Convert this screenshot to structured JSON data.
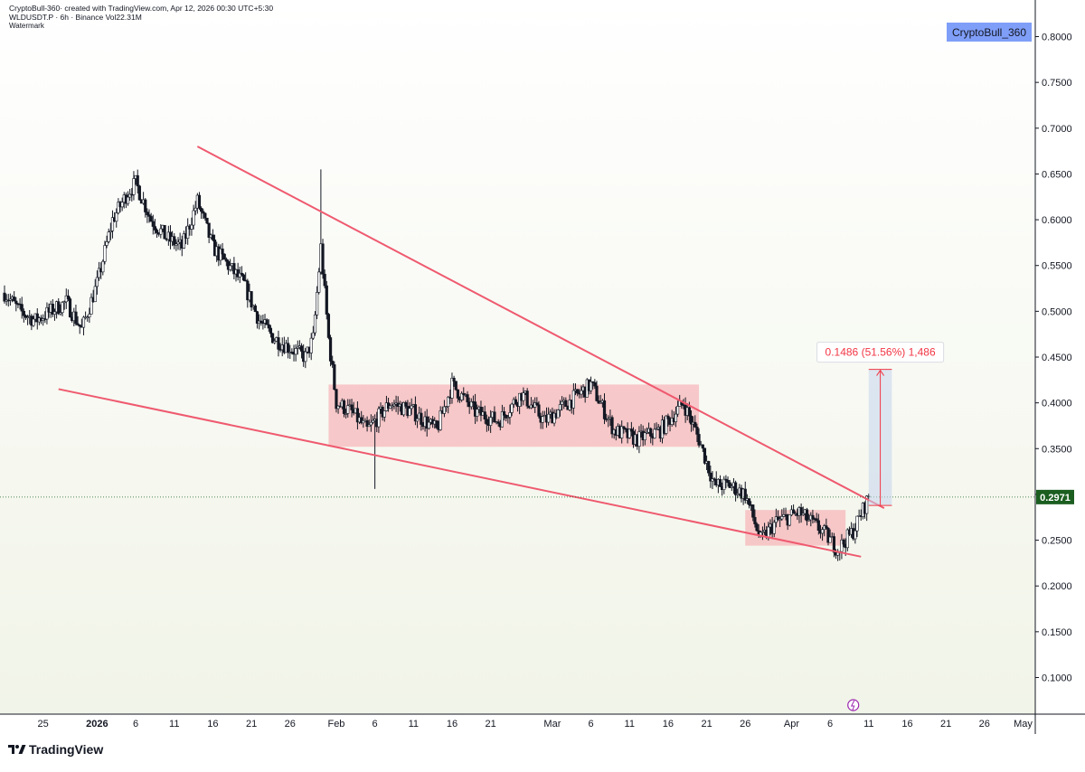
{
  "header": {
    "line1": "CryptoBull-360· created with TradingView.com, Apr 12, 2026 00:30 UTC+5:30",
    "line2": "WLDUSDT.P · 6h · Binance  Vol22.31M",
    "line3": "Watermark"
  },
  "author_badge": "CryptoBull_360",
  "brand": "TradingView",
  "colors": {
    "up": "#ffffff",
    "down": "#131722",
    "trendline": "#ef5a6f",
    "zone_fill": "#f7a1a8",
    "measure_fill": "#c5d5ec",
    "measure_line": "#f23645",
    "price_label": "#1b5e20",
    "axis_text": "#131722"
  },
  "chart_data": {
    "type": "candlestick",
    "symbol": "WLDUSDT.P",
    "interval": "6h",
    "exchange": "Binance",
    "date_range": [
      "2025-12-20",
      "2026-05-02"
    ],
    "y_axis": {
      "range": [
        0.06,
        0.84
      ],
      "ticks": [
        "0.8000",
        "0.7500",
        "0.7000",
        "0.6500",
        "0.6000",
        "0.5500",
        "0.5000",
        "0.4500",
        "0.4000",
        "0.3500",
        "0.3000",
        "0.2500",
        "0.2000",
        "0.1500",
        "0.1000"
      ]
    },
    "x_axis_ticks": [
      {
        "date": "2025-12-25",
        "label": "25"
      },
      {
        "date": "2026-01-01",
        "label": "2026"
      },
      {
        "date": "2026-01-06",
        "label": "6"
      },
      {
        "date": "2026-01-11",
        "label": "11"
      },
      {
        "date": "2026-01-16",
        "label": "16"
      },
      {
        "date": "2026-01-21",
        "label": "21"
      },
      {
        "date": "2026-01-26",
        "label": "26"
      },
      {
        "date": "2026-02-01",
        "label": "Feb"
      },
      {
        "date": "2026-02-06",
        "label": "6"
      },
      {
        "date": "2026-02-11",
        "label": "11"
      },
      {
        "date": "2026-02-16",
        "label": "16"
      },
      {
        "date": "2026-02-21",
        "label": "21"
      },
      {
        "date": "2026-03-01",
        "label": "Mar"
      },
      {
        "date": "2026-03-06",
        "label": "6"
      },
      {
        "date": "2026-03-11",
        "label": "11"
      },
      {
        "date": "2026-03-16",
        "label": "16"
      },
      {
        "date": "2026-03-21",
        "label": "21"
      },
      {
        "date": "2026-03-26",
        "label": "26"
      },
      {
        "date": "2026-04-01",
        "label": "Apr"
      },
      {
        "date": "2026-04-06",
        "label": "6"
      },
      {
        "date": "2026-04-11",
        "label": "11"
      },
      {
        "date": "2026-04-16",
        "label": "16"
      },
      {
        "date": "2026-04-21",
        "label": "21"
      },
      {
        "date": "2026-04-26",
        "label": "26"
      },
      {
        "date": "2026-05-01",
        "label": "May"
      }
    ],
    "current_price": "0.2971",
    "path_points": [
      [
        "2025-12-20",
        0.52
      ],
      [
        "2025-12-22",
        0.5
      ],
      [
        "2025-12-24",
        0.49
      ],
      [
        "2025-12-26",
        0.5
      ],
      [
        "2025-12-28",
        0.51
      ],
      [
        "2025-12-30",
        0.48
      ],
      [
        "2026-01-01",
        0.53
      ],
      [
        "2026-01-03",
        0.6
      ],
      [
        "2026-01-05",
        0.63
      ],
      [
        "2026-01-06",
        0.64
      ],
      [
        "2026-01-08",
        0.6
      ],
      [
        "2026-01-10",
        0.58
      ],
      [
        "2026-01-12",
        0.57
      ],
      [
        "2026-01-14",
        0.62
      ],
      [
        "2026-01-16",
        0.57
      ],
      [
        "2026-01-18",
        0.55
      ],
      [
        "2026-01-20",
        0.53
      ],
      [
        "2026-01-22",
        0.49
      ],
      [
        "2026-01-24",
        0.47
      ],
      [
        "2026-01-26",
        0.46
      ],
      [
        "2026-01-28",
        0.45
      ],
      [
        "2026-01-29",
        0.47
      ],
      [
        "2026-01-30",
        0.57
      ],
      [
        "2026-01-31",
        0.47
      ],
      [
        "2026-02-01",
        0.4
      ],
      [
        "2026-02-03",
        0.39
      ],
      [
        "2026-02-05",
        0.37
      ],
      [
        "2026-02-06",
        0.38
      ],
      [
        "2026-02-08",
        0.4
      ],
      [
        "2026-02-11",
        0.39
      ],
      [
        "2026-02-14",
        0.37
      ],
      [
        "2026-02-16",
        0.42
      ],
      [
        "2026-02-19",
        0.39
      ],
      [
        "2026-02-22",
        0.38
      ],
      [
        "2026-02-25",
        0.41
      ],
      [
        "2026-02-28",
        0.38
      ],
      [
        "2026-03-03",
        0.4
      ],
      [
        "2026-03-06",
        0.42
      ],
      [
        "2026-03-09",
        0.37
      ],
      [
        "2026-03-12",
        0.36
      ],
      [
        "2026-03-15",
        0.37
      ],
      [
        "2026-03-18",
        0.4
      ],
      [
        "2026-03-20",
        0.36
      ],
      [
        "2026-03-22",
        0.31
      ],
      [
        "2026-03-24",
        0.31
      ],
      [
        "2026-03-26",
        0.3
      ],
      [
        "2026-03-28",
        0.25
      ],
      [
        "2026-03-30",
        0.27
      ],
      [
        "2026-04-02",
        0.28
      ],
      [
        "2026-04-05",
        0.26
      ],
      [
        "2026-04-07",
        0.24
      ],
      [
        "2026-04-09",
        0.26
      ],
      [
        "2026-04-11",
        0.2971
      ]
    ],
    "annotations": {
      "falling_wedge_upper": {
        "from": [
          "2026-01-14",
          0.68
        ],
        "to": [
          "2026-04-13",
          0.285
        ]
      },
      "falling_wedge_lower": {
        "from": [
          "2025-12-27",
          0.415
        ],
        "to": [
          "2026-04-10",
          0.232
        ]
      },
      "range_box_1": {
        "from_date": "2026-01-31",
        "to_date": "2026-03-20",
        "top": 0.42,
        "bottom": 0.352
      },
      "range_box_2": {
        "from_date": "2026-03-26",
        "to_date": "2026-04-08",
        "top": 0.283,
        "bottom": 0.244
      },
      "measure": {
        "from_date": "2026-04-11",
        "to_date": "2026-04-14",
        "bottom": 0.288,
        "top": 0.4366,
        "label": "0.1486 (51.56%) 1,486"
      }
    }
  }
}
